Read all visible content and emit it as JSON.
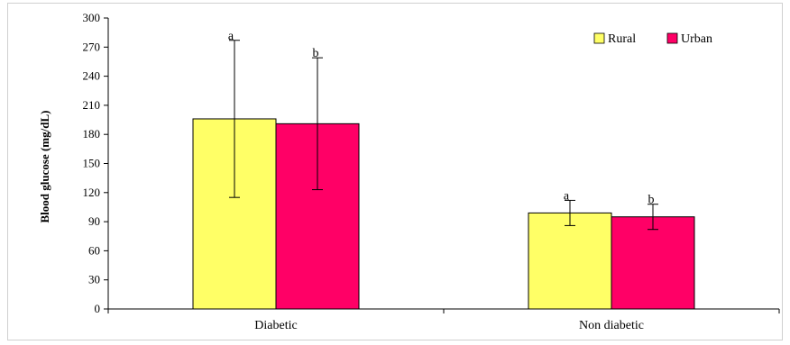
{
  "chart_data": {
    "type": "bar",
    "title": "",
    "xlabel": "",
    "ylabel": "Blood glucose (mg/dL)",
    "ylim": [
      0,
      300
    ],
    "yticks": [
      0,
      30,
      60,
      90,
      120,
      150,
      180,
      210,
      240,
      270,
      300
    ],
    "categories": [
      "Diabetic",
      "Non diabetic"
    ],
    "series": [
      {
        "name": "Rural",
        "color": "#ffff66",
        "values": [
          196,
          99
        ],
        "errors": [
          81,
          13
        ],
        "labels": [
          "a",
          "a"
        ]
      },
      {
        "name": "Urban",
        "color": "#ff0066",
        "values": [
          191,
          95
        ],
        "errors": [
          68,
          13
        ],
        "labels": [
          "b",
          "b"
        ]
      }
    ],
    "grid": false,
    "legend_position": "top-right"
  }
}
